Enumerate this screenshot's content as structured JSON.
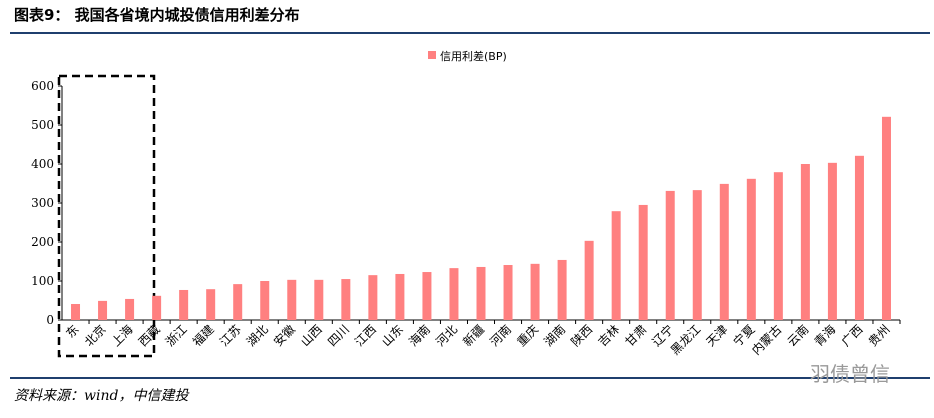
{
  "header": {
    "title": "图表9：  我国各省境内城投债信用利差分布"
  },
  "chart_data": {
    "type": "bar",
    "categories": [
      "东",
      "北京",
      "上海",
      "西藏",
      "浙江",
      "福建",
      "江苏",
      "湖北",
      "安徽",
      "山西",
      "四川",
      "江西",
      "山东",
      "海南",
      "河北",
      "新疆",
      "河南",
      "重庆",
      "湖南",
      "陕西",
      "吉林",
      "甘肃",
      "辽宁",
      "黑龙江",
      "天津",
      "宁夏",
      "内蒙古",
      "云南",
      "青海",
      "广西",
      "贵州"
    ],
    "series": [
      {
        "name": "信用利差(BP)",
        "color": "#ff8080",
        "values": [
          41,
          49,
          54,
          62,
          77,
          79,
          92,
          100,
          103,
          103,
          105,
          115,
          118,
          123,
          133,
          136,
          141,
          144,
          154,
          203,
          279,
          295,
          331,
          333,
          349,
          362,
          379,
          400,
          403,
          421,
          521
        ]
      }
    ],
    "ylim": [
      0,
      600
    ],
    "yticks": [
      0,
      100,
      200,
      300,
      400,
      500,
      600
    ],
    "grid": false,
    "legend": "top"
  },
  "footer": {
    "source": "资料来源：wind，中信建投",
    "watermark": "羽债曾信"
  }
}
